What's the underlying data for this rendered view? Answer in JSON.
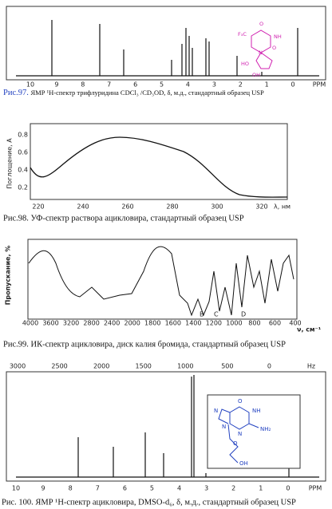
{
  "fig97": {
    "ppm_ticks": [
      "10",
      "9",
      "8",
      "7",
      "6",
      "5",
      "4",
      "3",
      "2",
      "1",
      "0",
      "PPM"
    ],
    "label": "Рис.97.",
    "caption": "ЯМР ¹H-спектр трифлуридина CDCl₃ /CD₃OD, δ, м.д., стандартный образец USP",
    "molecule": [
      "F₃C",
      "O",
      "NH",
      "N",
      "O",
      "HO",
      "OH"
    ]
  },
  "fig98": {
    "y_axis_label": "Поглощение, A",
    "yticks": [
      "0.2",
      "0.4",
      "0.6",
      "0.8"
    ],
    "xticks": [
      "220",
      "240",
      "260",
      "280",
      "300",
      "320"
    ],
    "x_axis_label": "λ, нм",
    "caption": "Рис.98. УФ-спектр раствора ацикловира, стандартный образец USP"
  },
  "fig99": {
    "y_axis_label": "Пропускание, %",
    "xticks": [
      "4000",
      "3600",
      "3200",
      "2800",
      "2400",
      "2000",
      "1800",
      "1600",
      "1400",
      "1200",
      "1000",
      "800",
      "600",
      "400"
    ],
    "x_axis_label": "ν, см⁻¹",
    "band_letters": [
      "B",
      "C",
      "D"
    ],
    "caption": "Рис.99. ИК-спектр ацикловира, диск калия бромида, стандартный образец USP"
  },
  "fig100": {
    "hz_ticks": [
      "3000",
      "2500",
      "2000",
      "1500",
      "1000",
      "500",
      "0",
      "Hz"
    ],
    "ppm_ticks": [
      "10",
      "9",
      "8",
      "7",
      "6",
      "5",
      "4",
      "3",
      "2",
      "1",
      "0",
      "PPM"
    ],
    "molecule": [
      "O",
      "NH",
      "N",
      "N",
      "NH₂",
      "N",
      "O",
      "OH"
    ],
    "caption": "Рис. 100. ЯМР ¹H-спектр ацикловира, DMSO-d₆, δ, м.д., стандартный образец USP"
  }
}
